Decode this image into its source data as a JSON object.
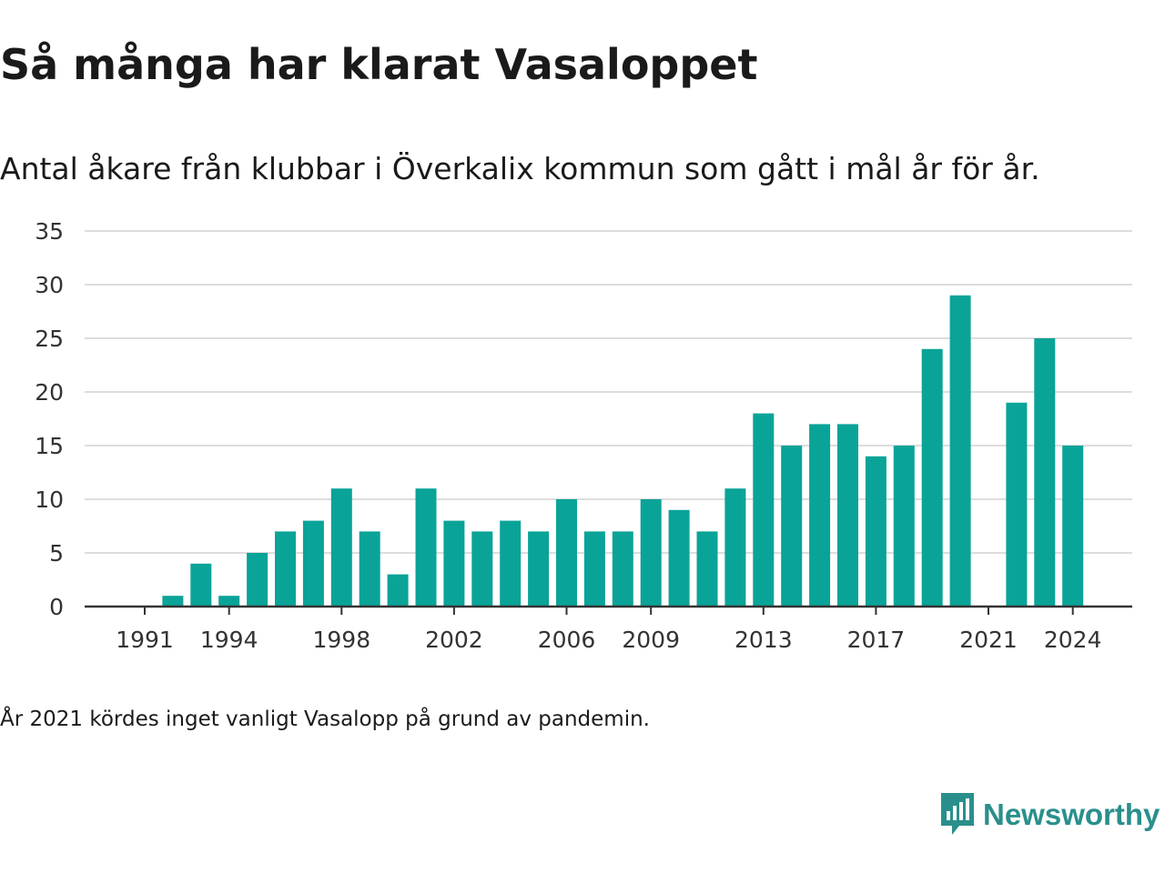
{
  "header": {
    "title": "Så många har klarat Vasaloppet",
    "subtitle": "Antal åkare från klubbar i Överkalix kommun som gått i mål år för år."
  },
  "footer": {
    "note": "År 2021 kördes inget vanligt Vasalopp på grund av pandemin."
  },
  "brand": {
    "name": "Newsworthy",
    "icon": "newsworthy-logo-icon",
    "color": "#2a8f8c"
  },
  "colors": {
    "bar": "#0aa398",
    "grid": "#dddddd",
    "axis": "#333333"
  },
  "chart_data": {
    "type": "bar",
    "x": [
      1991,
      1992,
      1993,
      1994,
      1995,
      1996,
      1997,
      1998,
      1999,
      2000,
      2001,
      2002,
      2003,
      2004,
      2005,
      2006,
      2007,
      2008,
      2009,
      2010,
      2011,
      2012,
      2013,
      2014,
      2015,
      2016,
      2017,
      2018,
      2019,
      2020,
      2021,
      2022,
      2023,
      2024
    ],
    "values": [
      0,
      1,
      4,
      1,
      5,
      7,
      8,
      11,
      7,
      3,
      11,
      8,
      7,
      8,
      7,
      10,
      7,
      7,
      10,
      9,
      7,
      11,
      18,
      15,
      17,
      17,
      14,
      15,
      24,
      29,
      0,
      19,
      25,
      15
    ],
    "x_tick_labels": [
      "1991",
      "1994",
      "1998",
      "2002",
      "2006",
      "2009",
      "2013",
      "2017",
      "2021",
      "2024"
    ],
    "y_tick_labels": [
      "0",
      "5",
      "10",
      "15",
      "20",
      "25",
      "30",
      "35"
    ],
    "ylim": [
      0,
      35
    ],
    "grid": true,
    "legend": "none"
  }
}
